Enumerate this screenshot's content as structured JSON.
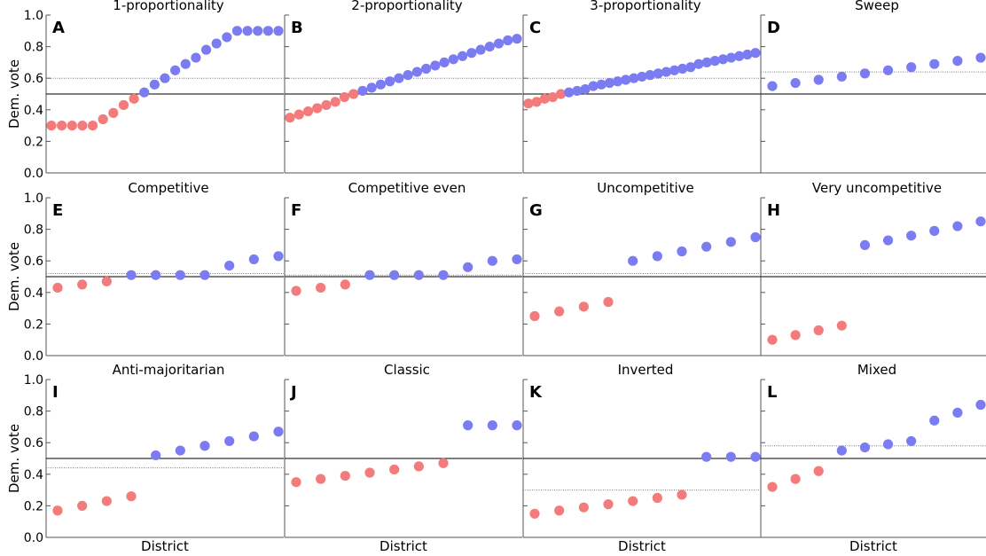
{
  "figure": {
    "ylabel": "Dem. vote",
    "xlabel": "District",
    "yticks": [
      "0.0",
      "0.2",
      "0.4",
      "0.6",
      "0.8",
      "1.0"
    ],
    "colors": {
      "dem": "#7b7bf2",
      "rep": "#f47b7b",
      "axis": "#555555",
      "midline": "#000000",
      "meanline": "#777777"
    }
  },
  "chart_data": [
    {
      "type": "scatter",
      "letter": "A",
      "title": "1-proportionality",
      "ylim": [
        0,
        1
      ],
      "midline": 0.5,
      "mean": 0.6,
      "values": [
        0.3,
        0.3,
        0.3,
        0.3,
        0.3,
        0.34,
        0.38,
        0.43,
        0.47,
        0.51,
        0.56,
        0.6,
        0.65,
        0.69,
        0.73,
        0.78,
        0.82,
        0.86,
        0.9,
        0.9,
        0.9,
        0.9,
        0.9
      ]
    },
    {
      "type": "scatter",
      "letter": "B",
      "title": "2-proportionality",
      "ylim": [
        0,
        1
      ],
      "midline": 0.5,
      "mean": 0.6,
      "values": [
        0.35,
        0.37,
        0.39,
        0.41,
        0.43,
        0.45,
        0.48,
        0.5,
        0.52,
        0.54,
        0.56,
        0.58,
        0.6,
        0.62,
        0.64,
        0.66,
        0.68,
        0.7,
        0.72,
        0.74,
        0.76,
        0.78,
        0.8,
        0.82,
        0.84,
        0.85
      ]
    },
    {
      "type": "scatter",
      "letter": "C",
      "title": "3-proportionality",
      "ylim": [
        0,
        1
      ],
      "midline": 0.5,
      "mean": 0.6,
      "values": [
        0.44,
        0.45,
        0.47,
        0.48,
        0.5,
        0.51,
        0.52,
        0.53,
        0.55,
        0.56,
        0.57,
        0.58,
        0.59,
        0.6,
        0.61,
        0.62,
        0.63,
        0.64,
        0.65,
        0.66,
        0.67,
        0.69,
        0.7,
        0.71,
        0.72,
        0.73,
        0.74,
        0.75,
        0.76
      ]
    },
    {
      "type": "scatter",
      "letter": "D",
      "title": "Sweep",
      "ylim": [
        0,
        1
      ],
      "midline": 0.5,
      "mean": 0.64,
      "values": [
        0.55,
        0.57,
        0.59,
        0.61,
        0.63,
        0.65,
        0.67,
        0.69,
        0.71,
        0.73
      ]
    },
    {
      "type": "scatter",
      "letter": "E",
      "title": "Competitive",
      "ylim": [
        0,
        1
      ],
      "midline": 0.5,
      "mean": 0.52,
      "values": [
        0.43,
        0.45,
        0.47,
        0.51,
        0.51,
        0.51,
        0.51,
        0.57,
        0.61,
        0.63
      ]
    },
    {
      "type": "scatter",
      "letter": "F",
      "title": "Competitive even",
      "ylim": [
        0,
        1
      ],
      "midline": 0.5,
      "mean": 0.51,
      "values": [
        0.41,
        0.43,
        0.45,
        0.51,
        0.51,
        0.51,
        0.51,
        0.56,
        0.6,
        0.61
      ]
    },
    {
      "type": "scatter",
      "letter": "G",
      "title": "Uncompetitive",
      "ylim": [
        0,
        1
      ],
      "midline": 0.5,
      "mean": 0.52,
      "values": [
        0.25,
        0.28,
        0.31,
        0.34,
        0.6,
        0.63,
        0.66,
        0.69,
        0.72,
        0.75
      ]
    },
    {
      "type": "scatter",
      "letter": "H",
      "title": "Very uncompetitive",
      "ylim": [
        0,
        1
      ],
      "midline": 0.5,
      "mean": 0.52,
      "values": [
        0.1,
        0.13,
        0.16,
        0.19,
        0.7,
        0.73,
        0.76,
        0.79,
        0.82,
        0.85
      ]
    },
    {
      "type": "scatter",
      "letter": "I",
      "title": "Anti-majoritarian",
      "ylim": [
        0,
        1
      ],
      "midline": 0.5,
      "mean": 0.44,
      "values": [
        0.17,
        0.2,
        0.23,
        0.26,
        0.52,
        0.55,
        0.58,
        0.61,
        0.64,
        0.67
      ]
    },
    {
      "type": "scatter",
      "letter": "J",
      "title": "Classic",
      "ylim": [
        0,
        1
      ],
      "midline": 0.5,
      "mean": 0.5,
      "values": [
        0.35,
        0.37,
        0.39,
        0.41,
        0.43,
        0.45,
        0.47,
        0.71,
        0.71,
        0.71
      ]
    },
    {
      "type": "scatter",
      "letter": "K",
      "title": "Inverted",
      "ylim": [
        0,
        1
      ],
      "midline": 0.5,
      "mean": 0.3,
      "values": [
        0.15,
        0.17,
        0.19,
        0.21,
        0.23,
        0.25,
        0.27,
        0.51,
        0.51,
        0.51
      ]
    },
    {
      "type": "scatter",
      "letter": "L",
      "title": "Mixed",
      "ylim": [
        0,
        1
      ],
      "midline": 0.5,
      "mean": 0.58,
      "values": [
        0.32,
        0.37,
        0.42,
        0.55,
        0.57,
        0.59,
        0.61,
        0.74,
        0.79,
        0.84
      ]
    }
  ]
}
